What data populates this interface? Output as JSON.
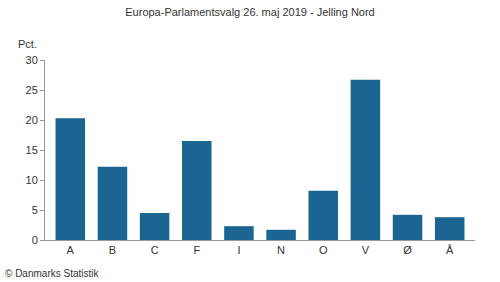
{
  "chart_data": {
    "type": "bar",
    "title": "Europa-Parlamentsvalg 26. maj 2019 - Jelling Nord",
    "ylabel": "Pct.",
    "source": "© Danmarks Statistik",
    "categories": [
      "A",
      "B",
      "C",
      "F",
      "I",
      "N",
      "O",
      "V",
      "Ø",
      "Å"
    ],
    "values": [
      20.3,
      12.2,
      4.5,
      16.5,
      2.3,
      1.7,
      8.2,
      26.7,
      4.2,
      3.8
    ],
    "color": "#1b6592",
    "ylim": [
      0,
      30
    ],
    "yticks": [
      0,
      5,
      10,
      15,
      20,
      25,
      30
    ],
    "grid": false
  }
}
